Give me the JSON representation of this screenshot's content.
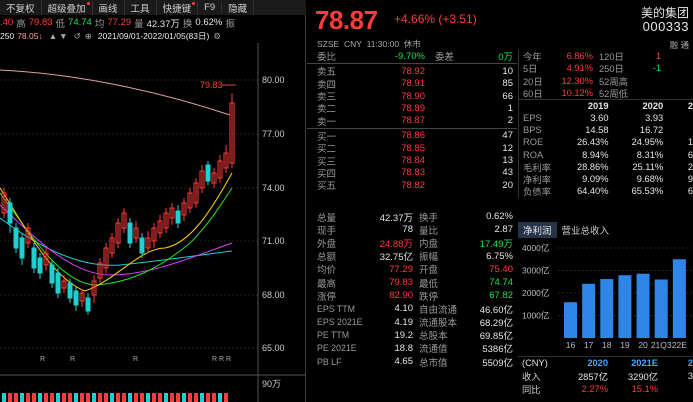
{
  "toolbar": {
    "items": [
      "不复权",
      "超级叠加",
      "画线",
      "工具",
      "快捷键",
      "F9",
      "隐藏"
    ]
  },
  "quote": {
    "prev_frag": ".40",
    "high_label": "高",
    "high": "79.83",
    "low_label": "低",
    "low": "74.74",
    "avg_label": "均",
    "avg": "77.29",
    "vol_label": "量",
    "vol": "42.37万",
    "turn_label": "换",
    "turn": "0.62%",
    "amp_label": "振"
  },
  "maline": {
    "ma_frag": "250",
    "ma_val": "78.05↓",
    "range": "2021/09/01-2022/01/05(83日)"
  },
  "chart": {
    "annot": "79.83",
    "yticks": [
      "80.00",
      "77.00",
      "74.00",
      "71.00",
      "68.00",
      "65.00"
    ],
    "vol_label": "90万",
    "r_marks": [
      "R",
      "R",
      "R",
      "R R R"
    ]
  },
  "header": {
    "price": "78.87",
    "change": "+4.66% (+3.51)",
    "name": "美的集团",
    "code": "000333",
    "exchange": "SZSE",
    "currency": "CNY",
    "time": "11:30:00",
    "status": "休市",
    "tags": "融 通"
  },
  "book": {
    "top": [
      [
        "委比",
        "-9.70%",
        "委差",
        "0万"
      ]
    ],
    "asks": [
      [
        "卖五",
        "78.92",
        "10"
      ],
      [
        "卖四",
        "78.91",
        "85"
      ],
      [
        "卖三",
        "78.90",
        "66"
      ],
      [
        "卖二",
        "78.89",
        "1"
      ],
      [
        "卖一",
        "78.87",
        "2"
      ]
    ],
    "bids": [
      [
        "买一",
        "78.86",
        "47"
      ],
      [
        "买二",
        "78.85",
        "12"
      ],
      [
        "买三",
        "78.84",
        "13"
      ],
      [
        "买四",
        "78.83",
        "43"
      ],
      [
        "买五",
        "78.82",
        "20"
      ]
    ]
  },
  "stats": [
    [
      "总量",
      "42.37万",
      "换手",
      "0.62%"
    ],
    [
      "现手",
      "78",
      "量比",
      "2.87"
    ],
    [
      "外盘",
      "24.88万",
      "内盘",
      "17.49万"
    ],
    [
      "总额",
      "32.75亿",
      "振幅",
      "6.75%"
    ],
    [
      "均价",
      "77.29",
      "开盘",
      "75.40"
    ],
    [
      "最高",
      "79.83",
      "最低",
      "74.74"
    ],
    [
      "涨停",
      "82.90",
      "跌停",
      "67.82"
    ],
    [
      "EPS TTM",
      "4.10",
      "自由流通",
      "46.60亿"
    ],
    [
      "EPS 2021E",
      "4.19",
      "流通股本",
      "68.29亿"
    ],
    [
      "PE TTM",
      "19.2",
      "总股本",
      "69.85亿"
    ],
    [
      "PE 2021E",
      "18.8",
      "流通值",
      "5386亿"
    ],
    [
      "PB LF",
      "4.65",
      "总市值",
      "5509亿"
    ]
  ],
  "perf": [
    [
      "今年",
      "6.86%",
      "120日",
      "1"
    ],
    [
      "5日",
      "4.91%",
      "250日",
      "-1"
    ],
    [
      "20日",
      "12.30%",
      "52周高",
      ""
    ],
    [
      "60日",
      "10.12%",
      "52周低",
      ""
    ]
  ],
  "fin": {
    "years": [
      "2019",
      "2020",
      "2"
    ],
    "rows": [
      [
        "EPS",
        "3.60",
        "3.93",
        ""
      ],
      [
        "BPS",
        "14.58",
        "16.72",
        ""
      ],
      [
        "ROE",
        "26.43%",
        "24.95%",
        "1"
      ],
      [
        "ROA",
        "8.94%",
        "8.31%",
        "6"
      ],
      [
        "毛利率",
        "28.86%",
        "25.11%",
        "2"
      ],
      [
        "净利率",
        "9.09%",
        "9.68%",
        "9"
      ],
      [
        "负债率",
        "64.40%",
        "65.53%",
        "6"
      ]
    ]
  },
  "tabs": [
    "净利润",
    "营业总收入"
  ],
  "bar_chart": {
    "yticks": [
      "4000亿",
      "3000亿",
      "2000亿",
      "1000亿"
    ],
    "xticks": [
      "16",
      "17",
      "18",
      "19",
      "20",
      "21Q3",
      "22E"
    ]
  },
  "chart_data": {
    "type": "bar",
    "categories": [
      "16",
      "17",
      "18",
      "19",
      "20",
      "21Q3",
      "22E"
    ],
    "values": [
      1590,
      2410,
      2620,
      2790,
      2857,
      2600,
      3500
    ],
    "ylim": [
      0,
      4000
    ],
    "ylabel": "",
    "xlabel": ""
  },
  "bottom": {
    "header": [
      "(CNY)",
      "2020",
      "2021E",
      "2"
    ],
    "rows": [
      [
        "收入",
        "2857亿",
        "3290亿",
        "3"
      ],
      [
        "同比",
        "2.27%",
        "15.1%",
        ""
      ]
    ]
  }
}
